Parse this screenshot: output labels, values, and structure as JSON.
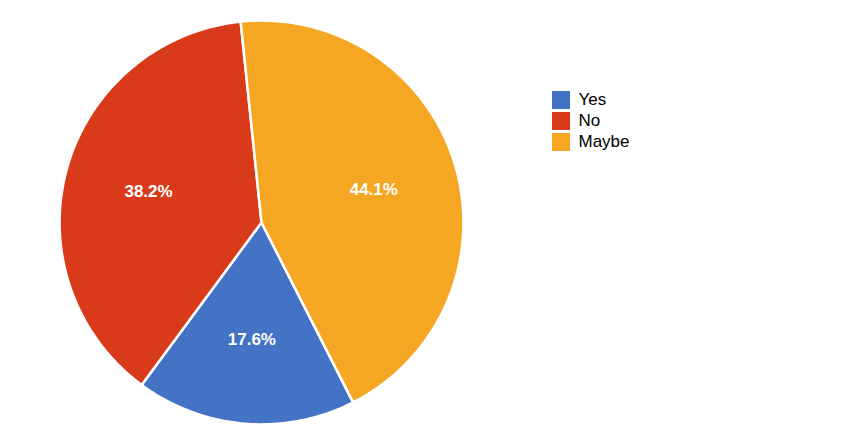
{
  "chart_data": {
    "type": "pie",
    "categories": [
      "Yes",
      "No",
      "Maybe"
    ],
    "values": [
      17.6,
      38.2,
      44.1
    ],
    "value_labels": [
      "17.6%",
      "38.2%",
      "44.1%"
    ],
    "colors": [
      "#4472C4",
      "#D93B1A",
      "#F5A623"
    ],
    "data_labels": true,
    "legend": "right"
  }
}
